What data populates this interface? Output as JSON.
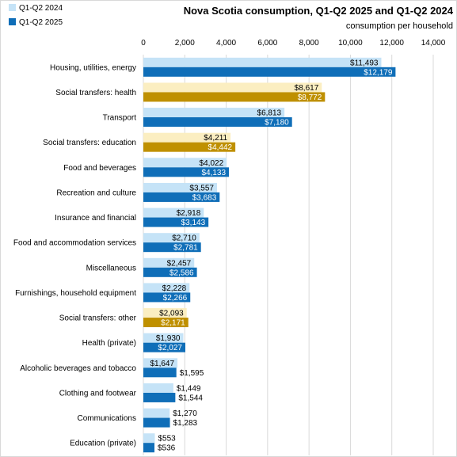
{
  "chart_data": {
    "type": "bar",
    "orientation": "horizontal",
    "title": "Nova Scotia consumption,  Q1-Q2 2025 and Q1-Q2 2024",
    "subtitle": "consumption per household",
    "xlim": [
      0,
      14000
    ],
    "xticks": [
      0,
      2000,
      4000,
      6000,
      8000,
      10000,
      12000,
      14000
    ],
    "xtick_labels": [
      "0",
      "2,000",
      "4,000",
      "6,000",
      "8,000",
      "10,000",
      "12,000",
      "14,000"
    ],
    "grid": true,
    "legend_position": "top-left",
    "categories": [
      "Housing, utilities, energy",
      "Social transfers: health",
      "Transport",
      "Social transfers: education",
      "Food and beverages",
      "Recreation and culture",
      "Insurance and financial",
      "Food and accommodation services",
      "Miscellaneous",
      "Furnishings, household equipment",
      "Social transfers: other",
      "Health (private)",
      "Alcoholic beverages and tobacco",
      "Clothing and footwear",
      "Communications",
      "Education (private)"
    ],
    "series": [
      {
        "name": "Q1-Q2 2024",
        "color": "#c5e3f7",
        "highlight_color": "#fbeec1",
        "values": [
          11493,
          8617,
          6813,
          4211,
          4022,
          3557,
          2918,
          2710,
          2457,
          2228,
          2093,
          1930,
          1647,
          1449,
          1270,
          553
        ],
        "labels": [
          "$11,493",
          "$8,617",
          "$6,813",
          "$4,211",
          "$4,022",
          "$3,557",
          "$2,918",
          "$2,710",
          "$2,457",
          "$2,228",
          "$2,093",
          "$1,930",
          "$1,647",
          "$1,449",
          "$1,270",
          "$553"
        ]
      },
      {
        "name": "Q1-Q2 2025",
        "color": "#0f6eb8",
        "highlight_color": "#bf9000",
        "values": [
          12179,
          8772,
          7180,
          4442,
          4133,
          3683,
          3143,
          2781,
          2586,
          2266,
          2171,
          2027,
          1595,
          1544,
          1283,
          536
        ],
        "labels": [
          "$12,179",
          "$8,772",
          "$7,180",
          "$4,442",
          "$4,133",
          "$3,683",
          "$3,143",
          "$2,781",
          "$2,586",
          "$2,266",
          "$2,171",
          "$2,027",
          "$1,595",
          "$1,544",
          "$1,283",
          "$536"
        ]
      }
    ],
    "highlighted_categories": [
      1,
      3,
      10
    ]
  }
}
